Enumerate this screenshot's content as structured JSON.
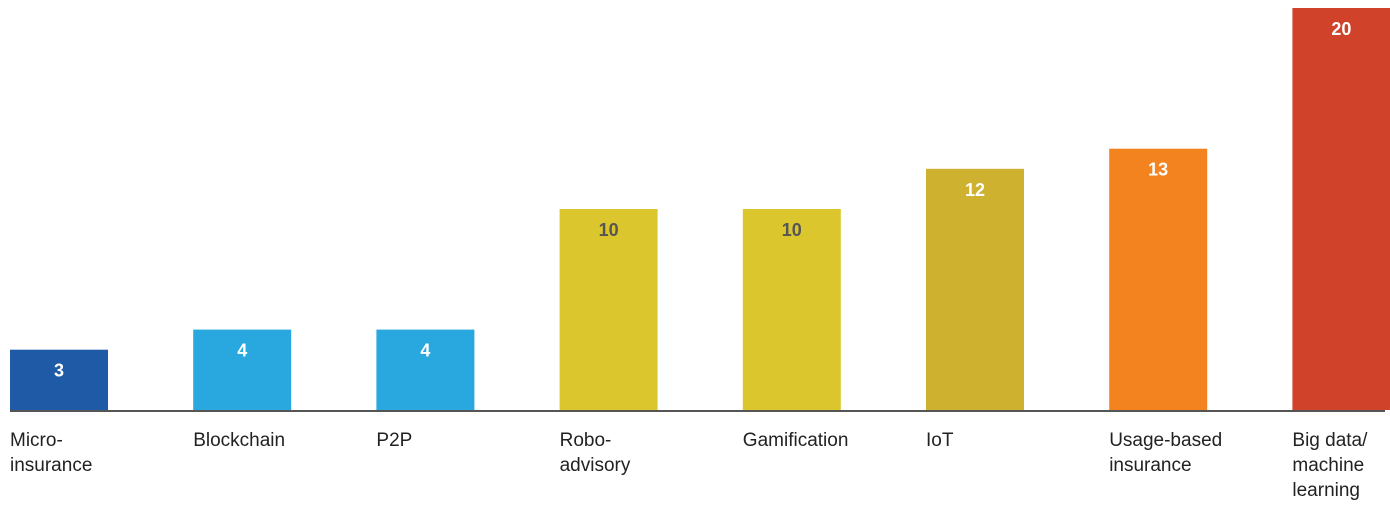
{
  "chart_data": {
    "type": "bar",
    "categories": [
      [
        "Micro-",
        "insurance"
      ],
      [
        "Blockchain"
      ],
      [
        "P2P"
      ],
      [
        "Robo-",
        "advisory"
      ],
      [
        "Gamification"
      ],
      [
        "IoT"
      ],
      [
        "Usage-based",
        "insurance"
      ],
      [
        "Big data/",
        "machine",
        "learning"
      ]
    ],
    "values": [
      3,
      4,
      4,
      10,
      10,
      12,
      13,
      20
    ],
    "value_labels": [
      "3",
      "4",
      "4",
      "10",
      "10",
      "12",
      "13",
      "20"
    ],
    "bar_colors": [
      "#1f5aa6",
      "#29a8e0",
      "#29a8e0",
      "#dcc62e",
      "#dcc62e",
      "#ceb12e",
      "#f2831f",
      "#d0422a"
    ],
    "label_colors": [
      "#ffffff",
      "#ffffff",
      "#ffffff",
      "#555555",
      "#555555",
      "#ffffff",
      "#ffffff",
      "#ffffff"
    ],
    "axis_color": "#555555",
    "ylim": [
      0,
      20
    ],
    "title": "",
    "xlabel": "",
    "ylabel": "",
    "grid": false,
    "legend": "none"
  }
}
